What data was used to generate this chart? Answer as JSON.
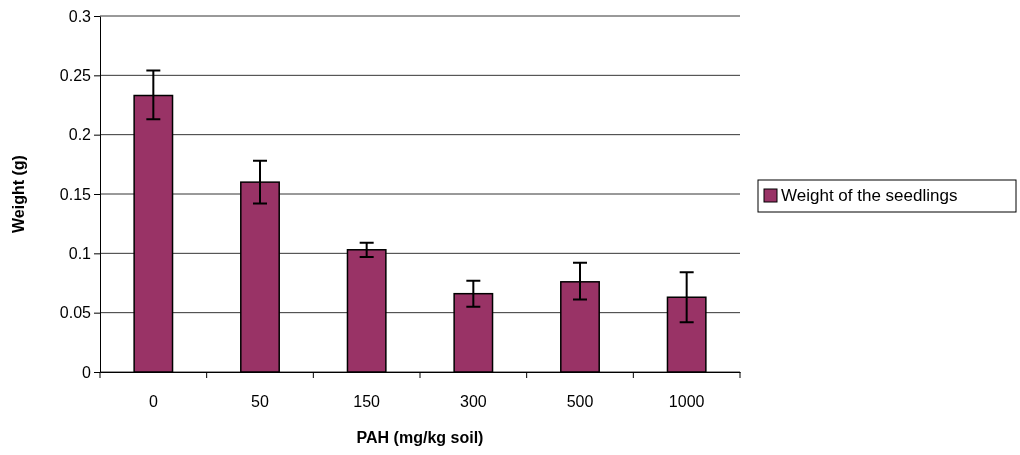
{
  "chart_data": {
    "type": "bar",
    "xlabel": "PAH (mg/kg soil)",
    "ylabel": "Weight (g)",
    "categories": [
      "0",
      "50",
      "150",
      "300",
      "500",
      "1000"
    ],
    "series": [
      {
        "name": "Weight of the seedlings",
        "color": "#993366",
        "values": [
          0.233,
          0.16,
          0.103,
          0.066,
          0.076,
          0.063
        ],
        "errors": [
          [
            0.213,
            0.254
          ],
          [
            0.142,
            0.178
          ],
          [
            0.097,
            0.109
          ],
          [
            0.055,
            0.077
          ],
          [
            0.061,
            0.092
          ],
          [
            0.042,
            0.084
          ]
        ]
      }
    ],
    "ylim": [
      0,
      0.3
    ],
    "yticks": [
      0,
      0.05,
      0.1,
      0.15,
      0.2,
      0.25,
      0.3
    ],
    "grid": "y",
    "legend": "right"
  }
}
